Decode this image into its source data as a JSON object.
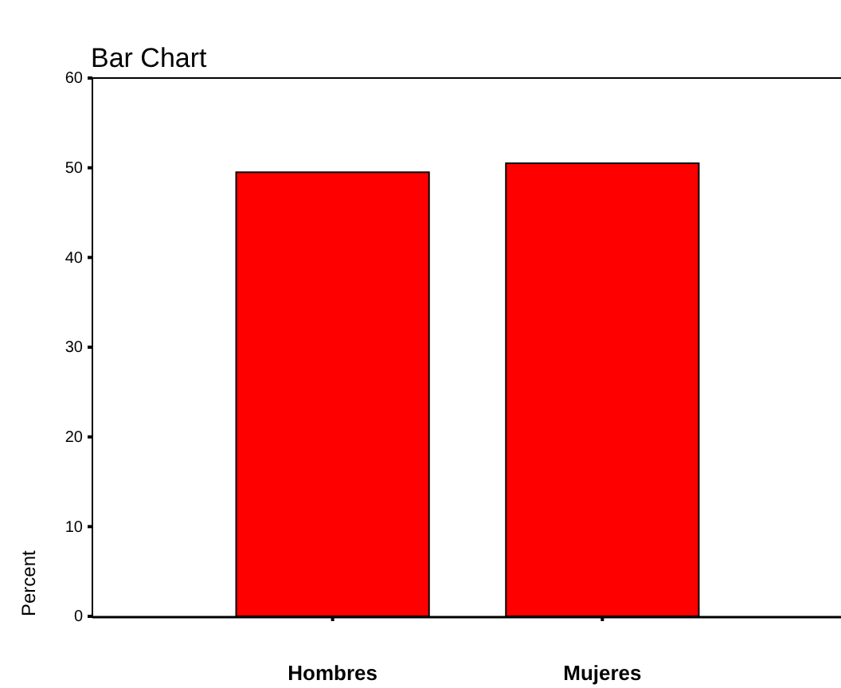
{
  "chart_data": {
    "type": "bar",
    "title": "Bar Chart",
    "ylabel": "Percent",
    "categories": [
      "Hombres",
      "Mujeres"
    ],
    "values": [
      49.5,
      50.5
    ],
    "color": "#ff0000",
    "ylim": [
      0,
      60
    ],
    "yticks": [
      0,
      10,
      20,
      30,
      40,
      50,
      60
    ],
    "grid": false
  }
}
